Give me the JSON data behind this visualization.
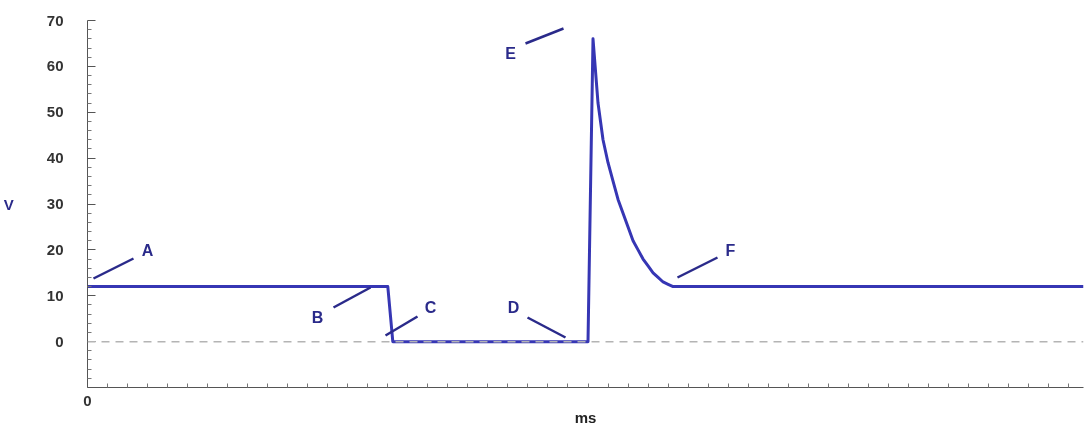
{
  "chart_data": {
    "type": "line",
    "xlabel": "ms",
    "ylabel": "V",
    "categories": [
      "0",
      null,
      null,
      null,
      null,
      null,
      null,
      null,
      null,
      null,
      null,
      null,
      null,
      null,
      null,
      null,
      null,
      null,
      null,
      null,
      null,
      null,
      null,
      null,
      null,
      null,
      null,
      null,
      null,
      null,
      null,
      null,
      null,
      null,
      null,
      null,
      null,
      null,
      null,
      null,
      null,
      null,
      null,
      null,
      null,
      null,
      null,
      null,
      null,
      null,
      null,
      null,
      null,
      null,
      null,
      null,
      null,
      null,
      null,
      null,
      null,
      null,
      null,
      null,
      null,
      null,
      null,
      null,
      null,
      null,
      null,
      null,
      null,
      null,
      null,
      null,
      null,
      null,
      null,
      null,
      null,
      null,
      null,
      null,
      null,
      null,
      null,
      null,
      null,
      null,
      null,
      null,
      null,
      null,
      null,
      null,
      null,
      null,
      null,
      null,
      null,
      null,
      null,
      null,
      null,
      null,
      null,
      null,
      null,
      null,
      null,
      null,
      null,
      null,
      null,
      null,
      null,
      null,
      null,
      null,
      null,
      null,
      null,
      null,
      null,
      null,
      null,
      null,
      null,
      null,
      null,
      null,
      null,
      null,
      null,
      null,
      null,
      null,
      null,
      null,
      null,
      null,
      null,
      null,
      null,
      null,
      null,
      null,
      null,
      null,
      null,
      null,
      null,
      null,
      null,
      null,
      null,
      null,
      null,
      null,
      null,
      null,
      null,
      null,
      null,
      null,
      null,
      null,
      null,
      null,
      null,
      null,
      null,
      null,
      null,
      null,
      null,
      null,
      null,
      null,
      null,
      null,
      null,
      null,
      null,
      null,
      null,
      null,
      null,
      null,
      null,
      null,
      null,
      null,
      null,
      null,
      null,
      null,
      null,
      null
    ],
    "series": [
      {
        "color": "#3636b4",
        "values": [
          12,
          12,
          12,
          12,
          12,
          12,
          12,
          12,
          12,
          12,
          12,
          12,
          12,
          12,
          12,
          12,
          12,
          12,
          12,
          12,
          12,
          12,
          12,
          12,
          12,
          12,
          12,
          12,
          12,
          12,
          12,
          12,
          12,
          12,
          12,
          12,
          12,
          12,
          12,
          12,
          12,
          12,
          12,
          12,
          12,
          12,
          12,
          12,
          12,
          12,
          12,
          12,
          12,
          12,
          12,
          12,
          12,
          12,
          12,
          12,
          12,
          0,
          0,
          0,
          0,
          0,
          0,
          0,
          0,
          0,
          0,
          0,
          0,
          0,
          0,
          0,
          0,
          0,
          0,
          0,
          0,
          0,
          0,
          0,
          0,
          0,
          0,
          0,
          0,
          0,
          0,
          0,
          0,
          0,
          0,
          0,
          0,
          0,
          0,
          0,
          0,
          66,
          52,
          44,
          39,
          35,
          31,
          28,
          25,
          22,
          20,
          18,
          16.5,
          15,
          14,
          13,
          12.5,
          12,
          12,
          12,
          12,
          12,
          12,
          12,
          12,
          12,
          12,
          12,
          12,
          12,
          12,
          12,
          12,
          12,
          12,
          12,
          12,
          12,
          12,
          12,
          12,
          12,
          12,
          12,
          12,
          12,
          12,
          12,
          12,
          12,
          12,
          12,
          12,
          12,
          12,
          12,
          12,
          12,
          12,
          12,
          12,
          12,
          12,
          12,
          12,
          12,
          12,
          12,
          12,
          12,
          12,
          12,
          12,
          12,
          12,
          12,
          12,
          12,
          12,
          12,
          12,
          12,
          12,
          12,
          12,
          12,
          12,
          12,
          12,
          12,
          12,
          12,
          12,
          12,
          12,
          12,
          12,
          12,
          12,
          12
        ]
      }
    ],
    "ylim": [
      -10,
      70
    ],
    "yticks": [
      0,
      10,
      20,
      30,
      40,
      50,
      60,
      70
    ],
    "grid": false,
    "marker": "none",
    "line_style": "solid",
    "ref_lines": [
      {
        "axis": "y",
        "value": 0,
        "color": "#b4b4b4",
        "line_style": "dashed"
      }
    ],
    "annotations": [
      "A",
      "B",
      "C",
      "D",
      "E",
      "F"
    ]
  }
}
